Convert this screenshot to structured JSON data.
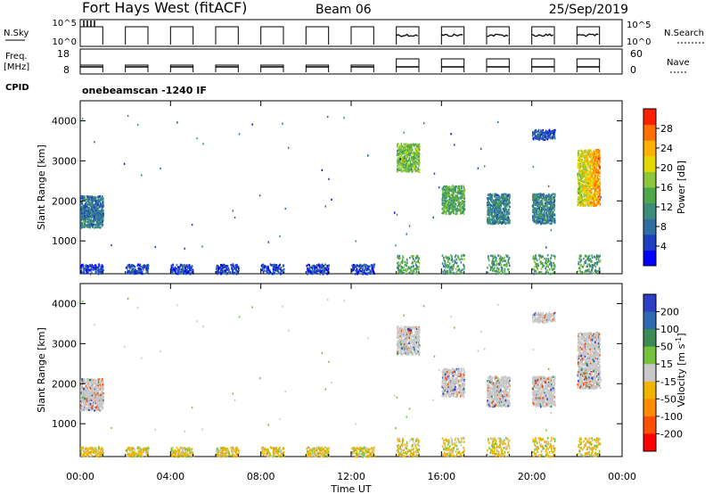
{
  "header": {
    "station": "Fort Hays West (fitACF)",
    "beam": "Beam 06",
    "date": "25/Sep/2019"
  },
  "top_panels": {
    "nsky_label": "N.Sky",
    "nsky_ticks": [
      "10^5",
      "10^0"
    ],
    "nsearch_label": "N.Search",
    "nsearch_ticks": [
      "10^5",
      "10^0"
    ],
    "freq_label": "Freq.",
    "freq_unit": "[MHz]",
    "freq_ticks": [
      "18",
      "8"
    ],
    "nave_label": "Nave",
    "nave_ticks": [
      "60",
      "0"
    ],
    "cpid_label": "CPID",
    "cpid_value": "onebeamscan -1240 IF"
  },
  "colors": {
    "power": [
      "#0000ff",
      "#1e3fbf",
      "#2e6ea0",
      "#3c8e7a",
      "#4ea84a",
      "#8cc83a",
      "#e6d800",
      "#ffb000",
      "#ff7000",
      "#ff2000"
    ],
    "velocity": [
      "#2c3ec2",
      "#2d6ab0",
      "#3c8a55",
      "#73c23a",
      "#c8c8c8",
      "#c8c8c8",
      "#f0b400",
      "#ff8c00",
      "#ff5000",
      "#ff0000"
    ],
    "velocity_band_colors": [
      "#2c3ec2",
      "#2d6ab0",
      "#3c8a55",
      "#73c23a",
      "#c8c8c8",
      "#f0b400",
      "#ff8c00",
      "#ff5000",
      "#ff0000"
    ]
  },
  "chart_data": [
    {
      "type": "heatmap",
      "name": "power",
      "ylabel": "Slant Range [km]",
      "ylim": [
        180,
        4500
      ],
      "yticks": [
        1000,
        2000,
        3000,
        4000
      ],
      "colorbar_label": "Power [dB]",
      "colorbar_ticks": [
        4,
        8,
        12,
        16,
        20,
        24,
        28
      ],
      "colorbar_range": [
        0,
        32
      ]
    },
    {
      "type": "heatmap",
      "name": "velocity",
      "ylabel": "Slant Range [km]",
      "ylim": [
        180,
        4500
      ],
      "yticks": [
        1000,
        2000,
        3000,
        4000
      ],
      "colorbar_label": "Velocity [m s^-1]",
      "colorbar_ticks": [
        "200",
        "100",
        "50",
        "15",
        "-15",
        "-50",
        "-100",
        "-200"
      ]
    }
  ],
  "time_axis": {
    "xlabel": "Time UT",
    "xlim": [
      0,
      24
    ],
    "ticks": [
      "00:00",
      "04:00",
      "08:00",
      "12:00",
      "16:00",
      "20:00",
      "00:00"
    ],
    "tick_hours": [
      0,
      4,
      8,
      12,
      16,
      20,
      24
    ]
  },
  "scatter_windows": [
    {
      "start": 0.0,
      "end": 1.0,
      "blobs": [
        {
          "r0": 1350,
          "r1": 1800,
          "power": 10
        },
        {
          "r0": 1600,
          "r1": 2150,
          "power": 8
        }
      ]
    },
    {
      "start": 2.0,
      "end": 3.0,
      "blobs": []
    },
    {
      "start": 4.0,
      "end": 5.0,
      "blobs": []
    },
    {
      "start": 6.0,
      "end": 7.0,
      "blobs": []
    },
    {
      "start": 8.0,
      "end": 9.0,
      "blobs": []
    },
    {
      "start": 10.0,
      "end": 11.0,
      "blobs": []
    },
    {
      "start": 12.0,
      "end": 13.0,
      "blobs": []
    },
    {
      "start": 14.0,
      "end": 15.0,
      "blobs": [
        {
          "r0": 2750,
          "r1": 3450,
          "power": 16
        }
      ]
    },
    {
      "start": 16.0,
      "end": 17.0,
      "blobs": [
        {
          "r0": 1700,
          "r1": 2400,
          "power": 14
        }
      ]
    },
    {
      "start": 18.0,
      "end": 19.0,
      "blobs": [
        {
          "r0": 1450,
          "r1": 2200,
          "power": 10
        }
      ]
    },
    {
      "start": 20.0,
      "end": 21.0,
      "blobs": [
        {
          "r0": 1450,
          "r1": 2200,
          "power": 10
        },
        {
          "r0": 3550,
          "r1": 3800,
          "power": 6
        }
      ]
    },
    {
      "start": 22.0,
      "end": 23.0,
      "blobs": [
        {
          "r0": 1900,
          "r1": 3300,
          "power": 18
        }
      ]
    }
  ]
}
